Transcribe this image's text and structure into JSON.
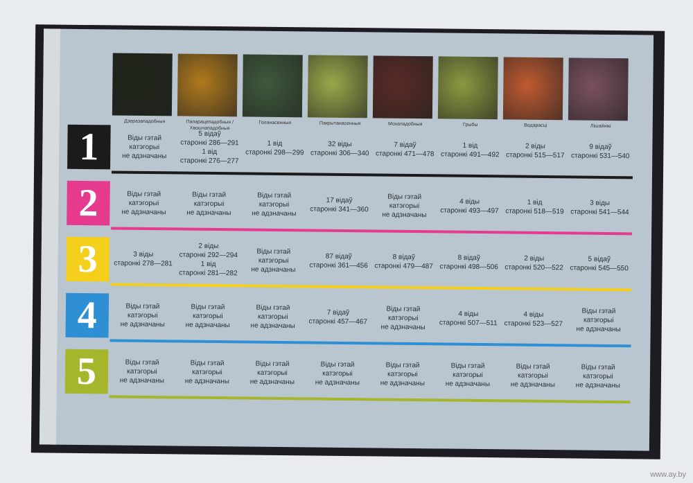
{
  "colors": {
    "row1": "#1b1b1b",
    "row2": "#e63a8f",
    "row3": "#f4cf1c",
    "row4": "#2f8fd5",
    "row5": "#a5b52c",
    "page": "#b9c6cf"
  },
  "columns": [
    "Дзеразападобныя",
    "Папарацепадобныя / Хвошчападобныя",
    "Голанасенныя",
    "Пакрытанасенныя",
    "Мохападобныя",
    "Грыбы",
    "Водарасці",
    "Лішайнікі"
  ],
  "photo_colors": [
    "#1e2418",
    "#b07a1c",
    "#3e5a3a",
    "#9aa84a",
    "#5a2a24",
    "#8a9a40",
    "#c05a30",
    "#7a5060"
  ],
  "na": [
    "Віды гэтай",
    "катэгорыі",
    "не адзначаны"
  ],
  "rows": [
    {
      "number": "1",
      "cells": [
        null,
        [
          "5 відаў",
          "старонкі 286—291",
          "1 від",
          "старонкі 276—277"
        ],
        [
          "1 від",
          "старонкі 298—299"
        ],
        [
          "32 віды",
          "старонкі 306—340"
        ],
        [
          "7 відаў",
          "старонкі 471—478"
        ],
        [
          "1 від",
          "старонкі 491—492"
        ],
        [
          "2 віды",
          "старонкі 515—517"
        ],
        [
          "9 відаў",
          "старонкі 531—540"
        ]
      ]
    },
    {
      "number": "2",
      "cells": [
        null,
        null,
        null,
        [
          "17 відаў",
          "старонкі 341—360"
        ],
        null,
        [
          "4 віды",
          "старонкі 493—497"
        ],
        [
          "1 від",
          "старонкі 518—519"
        ],
        [
          "3 віды",
          "старонкі 541—544"
        ]
      ]
    },
    {
      "number": "3",
      "cells": [
        [
          "3 віды",
          "старонкі 278—281"
        ],
        [
          "2 віды",
          "старонкі 292—294",
          "1 від",
          "старонкі 281—282"
        ],
        null,
        [
          "87 відаў",
          "старонкі 361—456"
        ],
        [
          "8 відаў",
          "старонкі 479—487"
        ],
        [
          "8 відаў",
          "старонкі 498—506"
        ],
        [
          "2 віды",
          "старонкі 520—522"
        ],
        [
          "5 відаў",
          "старонкі 545—550"
        ]
      ]
    },
    {
      "number": "4",
      "cells": [
        null,
        null,
        null,
        [
          "7 відаў",
          "старонкі 457—467"
        ],
        null,
        [
          "4 віды",
          "старонкі 507—511"
        ],
        [
          "4 віды",
          "старонкі 523—527"
        ],
        null
      ]
    },
    {
      "number": "5",
      "cells": [
        null,
        null,
        null,
        null,
        null,
        null,
        null,
        null
      ]
    }
  ],
  "watermark": "www.ay.by"
}
